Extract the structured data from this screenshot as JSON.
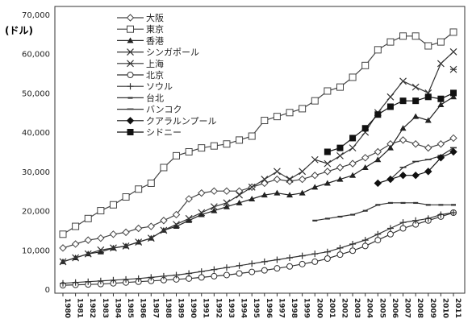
{
  "chart_data": {
    "type": "line",
    "title": "",
    "unit_label": "(ドル)",
    "xlabel": "",
    "ylabel": "",
    "x": [
      "1980",
      "1981",
      "1982",
      "1983",
      "1984",
      "1985",
      "1986",
      "1987",
      "1988",
      "1989",
      "1990",
      "1991",
      "1992",
      "1993",
      "1994",
      "1995",
      "1996",
      "1997",
      "1998",
      "1999",
      "2000",
      "2001",
      "2002",
      "2003",
      "2004",
      "2005",
      "2006",
      "2007",
      "2008",
      "2009",
      "2010",
      "2011"
    ],
    "ylim": [
      0,
      70000
    ],
    "yticks": [
      0,
      10000,
      20000,
      30000,
      40000,
      50000,
      60000,
      70000
    ],
    "ytick_labels": [
      "0",
      "10,000",
      "20,000",
      "30,000",
      "40,000",
      "50,000",
      "60,000",
      "70,000"
    ],
    "grid": false,
    "legend_position": "top-left",
    "series": [
      {
        "name": "大阪",
        "color": "#444444",
        "marker": "diamond-open",
        "values": [
          10500,
          11500,
          12500,
          13000,
          14000,
          14500,
          15500,
          16000,
          17500,
          19000,
          23000,
          24500,
          25000,
          25000,
          25000,
          26000,
          27000,
          28000,
          27500,
          28000,
          29000,
          30000,
          31000,
          32000,
          33500,
          35000,
          37000,
          38000,
          37000,
          36000,
          37000,
          38500
        ]
      },
      {
        "name": "東京",
        "color": "#444444",
        "marker": "square-open",
        "values": [
          14000,
          16000,
          18000,
          20000,
          21500,
          23500,
          25500,
          27000,
          31000,
          34000,
          35000,
          36000,
          36500,
          37000,
          38000,
          39000,
          43000,
          44000,
          45000,
          46000,
          48000,
          50500,
          51500,
          54000,
          57000,
          61000,
          63000,
          64500,
          64500,
          62000,
          63000,
          65500
        ]
      },
      {
        "name": "香港",
        "color": "#222222",
        "marker": "triangle-filled",
        "values": [
          7000,
          8000,
          9000,
          9500,
          10500,
          11000,
          12000,
          13000,
          15000,
          16000,
          17500,
          19000,
          20000,
          21000,
          22000,
          23000,
          24000,
          24500,
          24000,
          24500,
          26000,
          27000,
          28000,
          29000,
          31000,
          33000,
          36000,
          41000,
          44000,
          43000,
          47000,
          49000
        ]
      },
      {
        "name": "シンガポール",
        "color": "#333333",
        "marker": "x",
        "values": [
          7000,
          8000,
          9000,
          10000,
          10500,
          11000,
          12000,
          13000,
          15000,
          16500,
          18000,
          19500,
          21000,
          22000,
          24000,
          26000,
          28000,
          30000,
          28000,
          30000,
          33000,
          32000,
          34000,
          36000,
          40000,
          45000,
          49000,
          53000,
          51500,
          50000,
          57500,
          60500
        ]
      },
      {
        "name": "上海",
        "color": "#333333",
        "marker": "star",
        "values": [
          null,
          null,
          null,
          null,
          null,
          null,
          null,
          null,
          null,
          null,
          null,
          null,
          null,
          null,
          null,
          null,
          null,
          null,
          null,
          null,
          null,
          null,
          null,
          null,
          null,
          null,
          null,
          null,
          null,
          null,
          null,
          56000
        ]
      },
      {
        "name": "北京",
        "color": "#333333",
        "marker": "circle-open",
        "values": [
          1000,
          1100,
          1200,
          1300,
          1500,
          1700,
          1900,
          2100,
          2300,
          2500,
          2700,
          3000,
          3300,
          3600,
          4000,
          4400,
          4800,
          5300,
          5800,
          6400,
          7000,
          7800,
          8800,
          9800,
          11000,
          12500,
          14000,
          15500,
          16500,
          17500,
          18500,
          19500
        ]
      },
      {
        "name": "ソウル",
        "color": "#333333",
        "marker": "plus",
        "values": [
          1500,
          1700,
          1900,
          2100,
          2300,
          2500,
          2700,
          3000,
          3300,
          3600,
          4000,
          4500,
          5000,
          5500,
          6000,
          6500,
          7000,
          7500,
          8000,
          8500,
          9000,
          9500,
          10500,
          11500,
          12500,
          14000,
          15500,
          17000,
          17500,
          18000,
          19000,
          19500
        ]
      },
      {
        "name": "台北",
        "color": "#333333",
        "marker": "dash",
        "values": [
          null,
          null,
          null,
          null,
          null,
          null,
          null,
          null,
          null,
          null,
          null,
          null,
          null,
          null,
          null,
          null,
          null,
          null,
          null,
          null,
          17500,
          18000,
          18500,
          19000,
          20000,
          21500,
          22000,
          22000,
          22000,
          21500,
          21500,
          21500
        ]
      },
      {
        "name": "バンコク",
        "color": "#333333",
        "marker": "dash-long",
        "values": [
          null,
          null,
          null,
          null,
          null,
          null,
          null,
          null,
          null,
          null,
          null,
          null,
          null,
          null,
          null,
          null,
          null,
          null,
          null,
          null,
          null,
          null,
          null,
          null,
          null,
          null,
          28000,
          31000,
          32500,
          33000,
          34000,
          36000
        ]
      },
      {
        "name": "クアラルンプール",
        "color": "#111111",
        "marker": "diamond-filled",
        "values": [
          null,
          null,
          null,
          null,
          null,
          null,
          null,
          null,
          null,
          null,
          null,
          null,
          null,
          null,
          null,
          null,
          null,
          null,
          null,
          null,
          null,
          null,
          null,
          null,
          null,
          27000,
          28000,
          29000,
          29000,
          30000,
          33500,
          35000
        ]
      },
      {
        "name": "シドニー",
        "color": "#111111",
        "marker": "square-filled",
        "values": [
          null,
          null,
          null,
          null,
          null,
          null,
          null,
          null,
          null,
          null,
          null,
          null,
          null,
          null,
          null,
          null,
          null,
          null,
          null,
          null,
          null,
          35000,
          36000,
          38500,
          41000,
          44500,
          46500,
          48000,
          48000,
          49000,
          48500,
          50000
        ]
      }
    ]
  }
}
